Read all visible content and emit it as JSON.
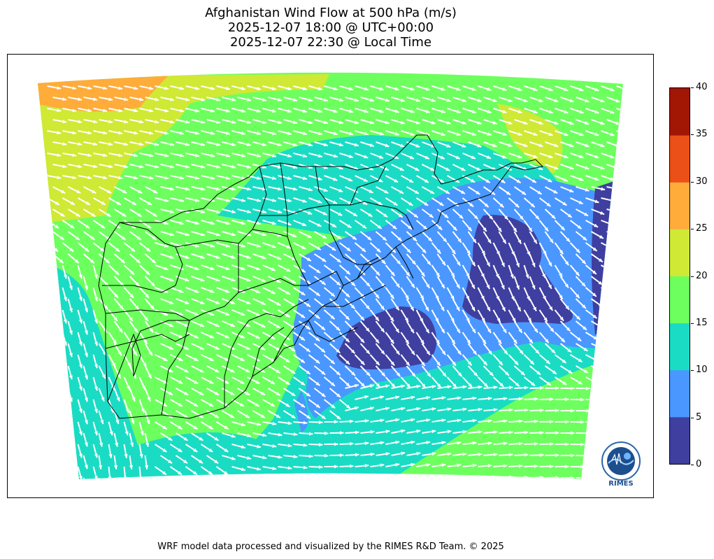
{
  "title": {
    "line1": "Afghanistan Wind Flow at 500 hPa (m/s)",
    "line2": "2025-12-07 18:00 @ UTC+00:00",
    "line3": "2025-12-07 22:30 @ Local Time"
  },
  "colorbar": {
    "ticks": [
      "0",
      "5",
      "10",
      "15",
      "20",
      "25",
      "30",
      "35",
      "40"
    ],
    "colors": [
      "#3f3fa0",
      "#4a97ff",
      "#1adcc4",
      "#6dff5e",
      "#cfe935",
      "#ffac3b",
      "#ea5018",
      "#a21604"
    ]
  },
  "logo": {
    "text": "RIMES"
  },
  "footer": "WRF model data processed and visualized by the RIMES R&D Team. © 2025"
}
